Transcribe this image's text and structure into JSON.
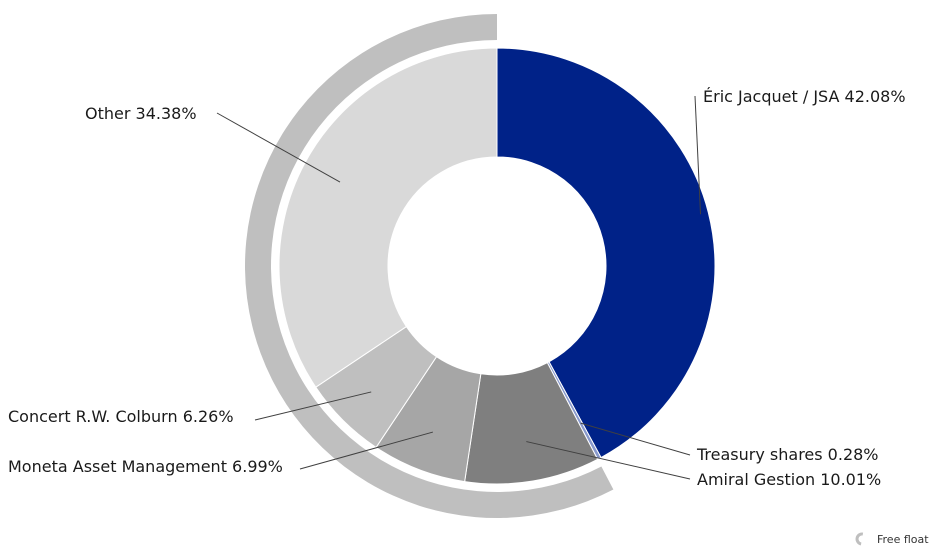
{
  "chart_data": {
    "type": "pie",
    "subtype": "donut",
    "slices": [
      {
        "label": "Éric Jacquet / JSA",
        "value": 42.08,
        "display": "Éric Jacquet / JSA 42.08%",
        "color": "#002288"
      },
      {
        "label": "Treasury shares",
        "value": 0.28,
        "display": "Treasury shares 0.28%",
        "color": "#8899cc"
      },
      {
        "label": "Amiral Gestion",
        "value": 10.01,
        "display": "Amiral Gestion 10.01%",
        "color": "#7f7f7f"
      },
      {
        "label": "Moneta Asset Management",
        "value": 6.99,
        "display": "Moneta Asset Management 6.99%",
        "color": "#a6a6a6"
      },
      {
        "label": "Concert R.W. Colburn",
        "value": 6.26,
        "display": "Concert R.W. Colburn 6.26%",
        "color": "#bfbfbf"
      },
      {
        "label": "Other",
        "value": 34.38,
        "display": "Other 34.38%",
        "color": "#d9d9d9"
      }
    ],
    "outer_band": {
      "label": "Free float",
      "covers": [
        "Amiral Gestion",
        "Moneta Asset Management",
        "Concert R.W. Colburn",
        "Other"
      ],
      "color": "#bfbfbf"
    },
    "legend": {
      "position": "bottom-right",
      "entries": [
        "Free float"
      ]
    }
  }
}
